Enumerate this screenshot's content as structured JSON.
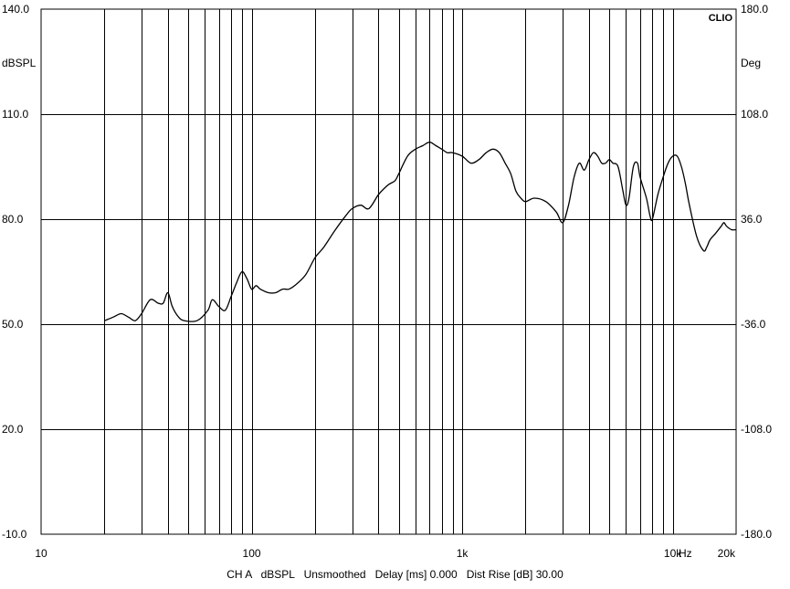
{
  "chart_data": {
    "type": "line",
    "brand": "CLIO",
    "left_axis": {
      "unit": "dBSPL",
      "ylim": [
        -10,
        140
      ],
      "ticks": [
        "140.0",
        "110.0",
        "80.0",
        "50.0",
        "20.0",
        "-10.0"
      ]
    },
    "right_axis": {
      "unit": "Deg",
      "ylim": [
        -180,
        180
      ],
      "ticks": [
        "180.0",
        "108.0",
        "36.0",
        "-36.0",
        "-108.0",
        "-180.0"
      ]
    },
    "x_axis": {
      "scale": "log",
      "xlim": [
        10,
        20000
      ],
      "unit": "Hz",
      "tick_labels": [
        {
          "value": 10,
          "label": "10"
        },
        {
          "value": 100,
          "label": "100"
        },
        {
          "value": 1000,
          "label": "1k"
        },
        {
          "value": 10000,
          "label": "10k"
        },
        {
          "value": 20000,
          "label": "20k"
        }
      ]
    },
    "grid": true,
    "series": [
      {
        "color": "#000000",
        "x": [
          20,
          22,
          24,
          26,
          28,
          30,
          33,
          36,
          38,
          40,
          42,
          45,
          48,
          55,
          62,
          65,
          70,
          75,
          80,
          85,
          90,
          95,
          100,
          105,
          110,
          120,
          130,
          140,
          150,
          160,
          180,
          200,
          220,
          250,
          280,
          300,
          330,
          360,
          400,
          430,
          450,
          480,
          500,
          550,
          600,
          650,
          700,
          750,
          800,
          850,
          900,
          1000,
          1100,
          1200,
          1300,
          1400,
          1500,
          1600,
          1700,
          1800,
          1900,
          2000,
          2200,
          2500,
          2800,
          3000,
          3200,
          3400,
          3600,
          3800,
          4000,
          4200,
          4400,
          4600,
          4800,
          5000,
          5200,
          5500,
          5800,
          6000,
          6200,
          6500,
          6800,
          7000,
          7500,
          7800,
          8000,
          8500,
          9000,
          9500,
          10000,
          10500,
          11000,
          11500,
          12000,
          13000,
          14000,
          14500,
          15000,
          16000,
          17000,
          17500,
          18000,
          19000,
          20000
        ],
        "values": [
          51,
          52,
          53,
          52,
          51,
          53,
          57,
          56,
          56,
          59,
          55,
          52,
          51,
          51,
          54,
          57,
          55,
          54,
          58,
          62,
          65,
          63,
          60,
          61,
          60,
          59,
          59,
          60,
          60,
          61,
          64,
          69,
          72,
          77,
          81,
          83,
          84,
          83,
          87,
          89,
          90,
          91,
          93,
          98,
          100,
          101,
          102,
          101,
          100,
          99,
          99,
          98,
          96,
          97,
          99,
          100,
          99,
          96,
          93,
          88,
          86,
          85,
          86,
          85,
          82,
          79,
          84,
          92,
          96,
          94,
          97,
          99,
          98,
          96,
          96,
          97,
          96,
          95,
          88,
          84,
          86,
          95,
          96,
          92,
          86,
          81,
          80,
          87,
          92,
          96,
          98,
          98,
          95,
          90,
          84,
          75,
          71,
          72,
          74,
          76,
          78,
          79,
          78,
          77,
          77
        ]
      }
    ]
  },
  "footer": {
    "channel": "CH A",
    "unit": "dBSPL",
    "smoothing": "Unsmoothed",
    "delay": "Delay [ms] 0.000",
    "dist_rise": "Dist Rise [dB] 30.00"
  }
}
